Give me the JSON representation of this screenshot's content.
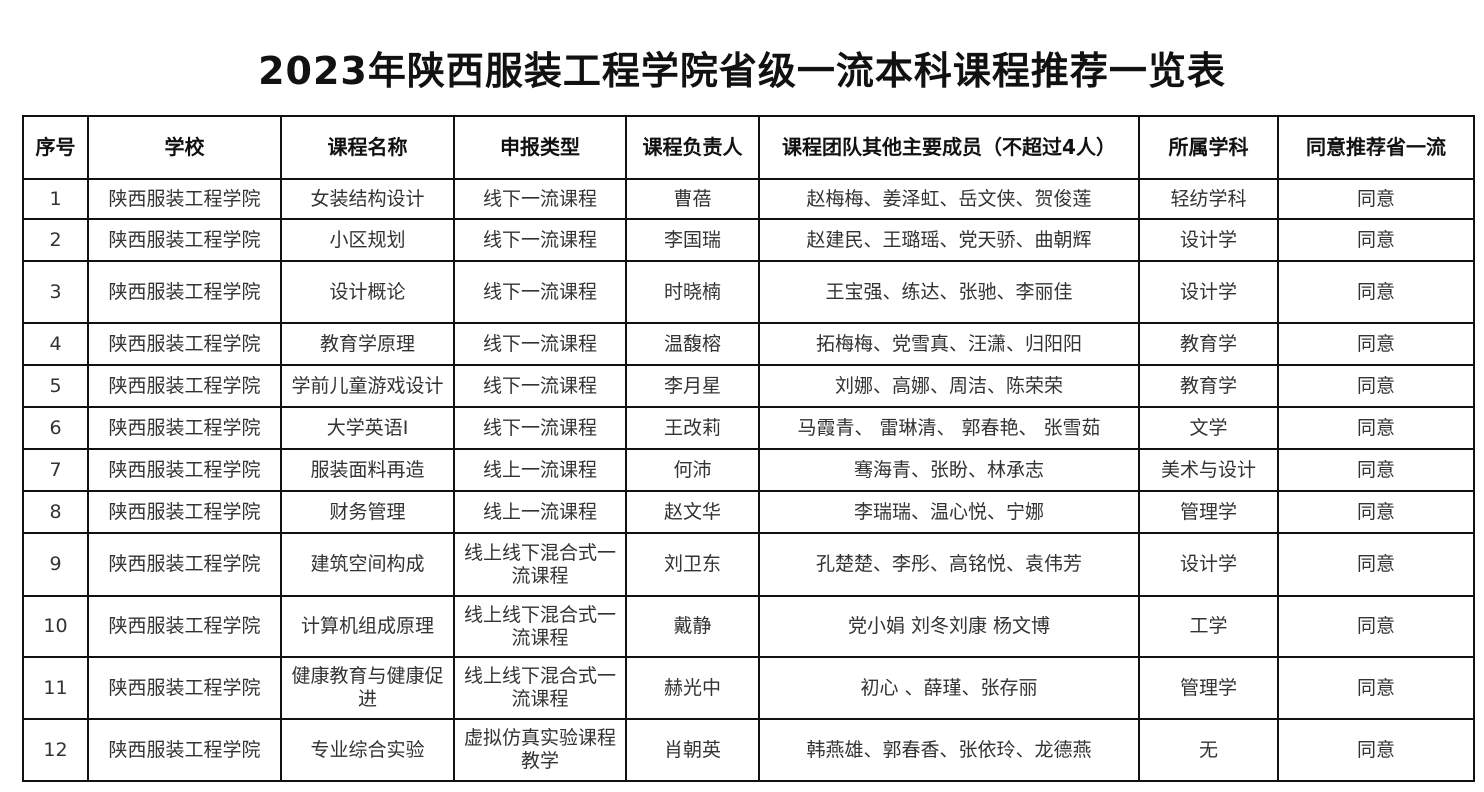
{
  "title": "2023年陕西服装工程学院省级一流本科课程推荐一览表",
  "headers": [
    "序号",
    "学校",
    "课程名称",
    "申报类型",
    "课程负责人",
    "课程团队其他主要成员（不超过4人）",
    "所属学科",
    "同意推荐省一流"
  ],
  "rows": [
    [
      "1",
      "陕西服装工程学院",
      "女装结构设计",
      "线下一流课程",
      "曹蓓",
      "赵梅梅、姜泽虹、岳文侠、贺俊莲",
      "轻纺学科",
      "同意"
    ],
    [
      "2",
      "陕西服装工程学院",
      "小区规划",
      "线下一流课程",
      "李国瑞",
      "赵建民、王璐瑶、党天骄、曲朝辉",
      "设计学",
      "同意"
    ],
    [
      "3",
      "陕西服装工程学院",
      "设计概论",
      "线下一流课程",
      "时晓楠",
      "王宝强、练达、张驰、李丽佳",
      "设计学",
      "同意"
    ],
    [
      "4",
      "陕西服装工程学院",
      "教育学原理",
      "线下一流课程",
      "温馥榕",
      "拓梅梅、党雪真、汪潇、归阳阳",
      "教育学",
      "同意"
    ],
    [
      "5",
      "陕西服装工程学院",
      "学前儿童游戏设计",
      "线下一流课程",
      "李月星",
      "刘娜、高娜、周洁、陈荣荣",
      "教育学",
      "同意"
    ],
    [
      "6",
      "陕西服装工程学院",
      "大学英语Ⅰ",
      "线下一流课程",
      "王改莉",
      "马霞青、 雷琳清、 郭春艳、 张雪茹",
      "文学",
      "同意"
    ],
    [
      "7",
      "陕西服装工程学院",
      "服装面料再造",
      "线上一流课程",
      "何沛",
      "骞海青、张盼、林承志",
      "美术与设计",
      "同意"
    ],
    [
      "8",
      "陕西服装工程学院",
      "财务管理",
      "线上一流课程",
      "赵文华",
      "李瑞瑞、温心悦、宁娜",
      "管理学",
      "同意"
    ],
    [
      "9",
      "陕西服装工程学院",
      "建筑空间构成",
      "线上线下混合式一流课程",
      "刘卫东",
      "孔楚楚、李彤、高铭悦、袁伟芳",
      "设计学",
      "同意"
    ],
    [
      "10",
      "陕西服装工程学院",
      "计算机组成原理",
      "线上线下混合式一流课程",
      "戴静",
      "党小娟 刘冬刘康 杨文博",
      "工学",
      "同意"
    ],
    [
      "11",
      "陕西服装工程学院",
      "健康教育与健康促进",
      "线上线下混合式一流课程",
      "赫光中",
      "初心 、薛瑾、张存丽",
      "管理学",
      "同意"
    ],
    [
      "12",
      "陕西服装工程学院",
      "专业综合实验",
      "虚拟仿真实验课程教学",
      "肖朝英",
      "韩燕雄、郭春香、张依玲、龙德燕",
      "无",
      "同意"
    ]
  ]
}
